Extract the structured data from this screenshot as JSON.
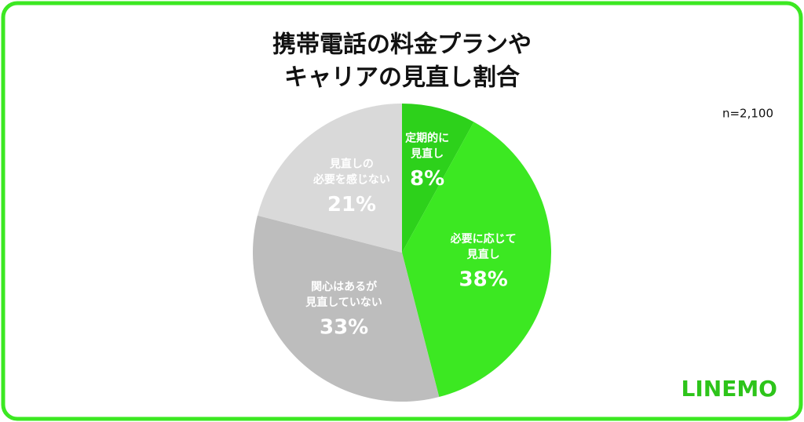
{
  "chart_data": {
    "type": "pie",
    "title": [
      "携帯電話の料金プランや",
      "キャリアの見直し割合"
    ],
    "annotation": "n=2,100",
    "logo": "LINEMO",
    "categories": [
      "定期的に\n見直し",
      "必要に応じて\n見直し",
      "関心はあるが\n見直していない",
      "見直しの\n必要を感じない"
    ],
    "values": [
      8,
      38,
      33,
      21
    ],
    "value_labels": [
      "8%",
      "38%",
      "33%",
      "21%"
    ],
    "colors": [
      "#2dd11b",
      "#3ce822",
      "#bdbdbd",
      "#d9d9d9"
    ]
  }
}
